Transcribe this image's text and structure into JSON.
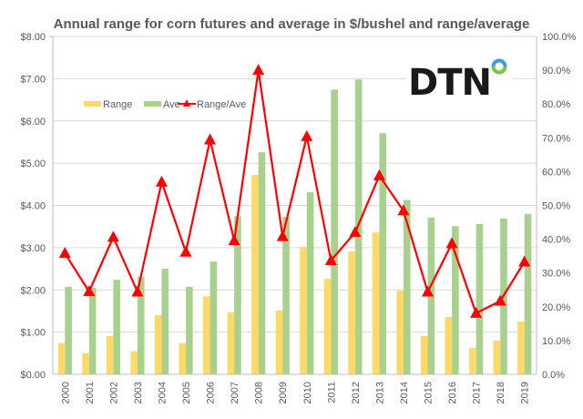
{
  "chart_data": {
    "type": "bar",
    "title": "Annual range for corn futures and average in $/bushel and range/average",
    "categories": [
      "2000",
      "2001",
      "2002",
      "2003",
      "2004",
      "2005",
      "2006",
      "2007",
      "2008",
      "2009",
      "2010",
      "2011",
      "2012",
      "2013",
      "2014",
      "2015",
      "2016",
      "2017",
      "2018",
      "2019"
    ],
    "series": [
      {
        "name": "Range",
        "type": "bar",
        "axis": "left",
        "color": "#FFD966",
        "values": [
          0.74,
          0.5,
          0.91,
          0.55,
          1.4,
          0.74,
          1.85,
          1.47,
          4.72,
          1.51,
          3.02,
          2.26,
          2.91,
          3.36,
          1.98,
          0.91,
          1.36,
          0.63,
          0.8,
          1.25
        ]
      },
      {
        "name": "Ave",
        "type": "bar",
        "axis": "left",
        "color": "#A9D18E",
        "values": [
          2.07,
          2.05,
          2.24,
          2.31,
          2.5,
          2.07,
          2.67,
          3.74,
          5.26,
          3.73,
          4.31,
          6.74,
          6.98,
          5.71,
          4.13,
          3.71,
          3.51,
          3.56,
          3.69,
          3.8
        ]
      },
      {
        "name": "Range/Ave",
        "type": "line",
        "axis": "right",
        "color": "#FF0000",
        "marker": "triangle",
        "values": [
          35.8,
          24.5,
          40.6,
          24.4,
          56.9,
          36.2,
          69.4,
          39.6,
          90.0,
          40.8,
          70.4,
          33.7,
          42.0,
          58.8,
          48.4,
          24.4,
          38.7,
          18.1,
          21.7,
          33.3
        ]
      }
    ],
    "xlabel": "",
    "ylabel_left": "",
    "ylabel_right": "",
    "ylim_left": [
      0,
      8
    ],
    "ylim_right": [
      0,
      100
    ],
    "yticks_left": [
      "$0.00",
      "$1.00",
      "$2.00",
      "$3.00",
      "$4.00",
      "$5.00",
      "$6.00",
      "$7.00",
      "$8.00"
    ],
    "yticks_right": [
      "0.0%",
      "10.0%",
      "20.0%",
      "30.0%",
      "40.0%",
      "50.0%",
      "60.0%",
      "70.0%",
      "80.0%",
      "90.0%",
      "100.0%"
    ],
    "grid": true,
    "legend": {
      "placement": "top-left",
      "entries": [
        "Range",
        "Ave",
        "Range/Ave"
      ]
    }
  },
  "logo": {
    "text": "DTN",
    "ring_top_color": "#3AA0DC",
    "ring_bottom_color": "#7DC242"
  },
  "style": {
    "gridline_color": "#D9D9D9",
    "axis_color": "#BFBFBF",
    "text_color": "#595959"
  }
}
